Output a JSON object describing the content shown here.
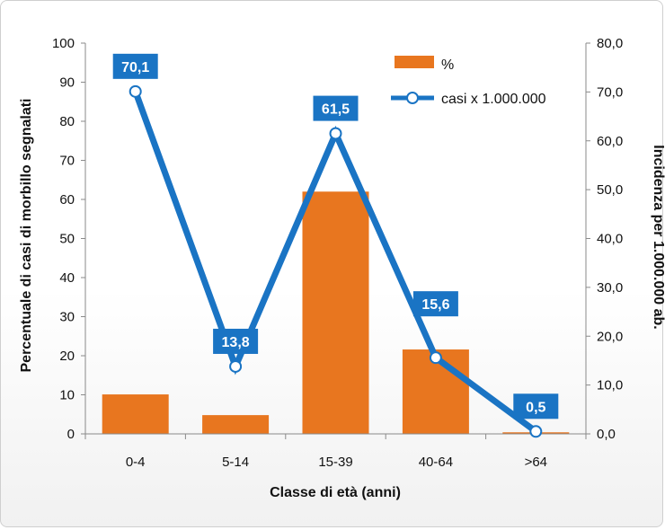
{
  "chart_data": {
    "type": "bar",
    "categories": [
      "0-4",
      "5-14",
      "15-39",
      "40-64",
      ">64"
    ],
    "series": [
      {
        "name": "%",
        "type": "bar",
        "axis": "left",
        "values": [
          10.1,
          4.8,
          62.0,
          21.6,
          0.4
        ]
      },
      {
        "name": "casi x 1.000.000",
        "type": "line",
        "axis": "right",
        "values": [
          70.1,
          13.8,
          61.5,
          15.6,
          0.5
        ],
        "labels": [
          "70,1",
          "13,8",
          "61,5",
          "15,6",
          "0,5"
        ]
      }
    ],
    "xlabel": "Classe di età (anni)",
    "ylabel": "Percentuale di casi di morbillo segnalati",
    "y2label": "Incidenza per 1.000.000 ab.",
    "ylim": [
      0,
      100
    ],
    "y2lim": [
      0,
      80
    ],
    "yticks": [
      "0",
      "10",
      "20",
      "30",
      "40",
      "50",
      "60",
      "70",
      "80",
      "90",
      "100"
    ],
    "y2ticks": [
      "0,0",
      "10,0",
      "20,0",
      "30,0",
      "40,0",
      "50,0",
      "60,0",
      "70,0",
      "80,0"
    ],
    "legend": "top-right",
    "grid": false,
    "colors": {
      "bar": "#e8761f",
      "bar_light": "#f29a52",
      "line": "#1a74c4",
      "label_bg": "#1a74c4"
    }
  }
}
